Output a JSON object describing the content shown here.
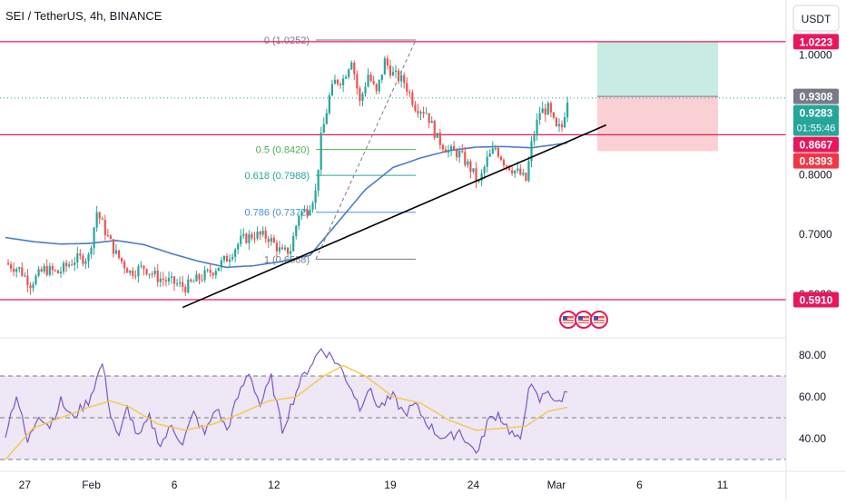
{
  "header": {
    "symbol_title": "SEI / TetherUS, 4h, BINANCE",
    "currency_button": "USDT"
  },
  "colors": {
    "up": "#26a69a",
    "down": "#ef5350",
    "ma": "#4a7cc7",
    "level_line": "#e8175d",
    "rsi_line": "#7e57c2",
    "rsi_ma": "#f5c842",
    "rsi_band": "#ede7f6",
    "trendline": "#000000",
    "target_zone": "#c8ebe3",
    "stop_zone": "#fbd0d5"
  },
  "price_axis": {
    "ticks": [
      {
        "label": "1.0000",
        "value": 1.0
      },
      {
        "label": "0.8000",
        "value": 0.8
      },
      {
        "label": "0.7000",
        "value": 0.7
      },
      {
        "label": "0.6000",
        "value": 0.6
      }
    ],
    "badges": [
      {
        "label": "1.0223",
        "value": 1.0223,
        "color": "#e8175d",
        "text": "#ffffff"
      },
      {
        "label": "0.9308",
        "value": 0.9308,
        "color": "#787b86",
        "text": "#ffffff"
      },
      {
        "label": "0.9283",
        "value": 0.9283,
        "color": "#26a69a",
        "text": "#ffffff",
        "sub": "01:55:46"
      },
      {
        "label": "0.8667",
        "value": 0.8667,
        "color": "#e8175d",
        "text": "#ffffff"
      },
      {
        "label": "0.8393",
        "value": 0.8393,
        "color": "#f23645",
        "text": "#ffffff"
      },
      {
        "label": "0.5910",
        "value": 0.591,
        "color": "#e8175d",
        "text": "#ffffff"
      }
    ]
  },
  "rsi_axis": {
    "ticks": [
      {
        "label": "80.00",
        "value": 80
      },
      {
        "label": "60.00",
        "value": 60
      },
      {
        "label": "40.00",
        "value": 40
      }
    ]
  },
  "time_axis": {
    "ticks": [
      {
        "label": "27",
        "index": 7
      },
      {
        "label": "Feb",
        "index": 31
      },
      {
        "label": "6",
        "index": 61
      },
      {
        "label": "12",
        "index": 97
      },
      {
        "label": "19",
        "index": 139
      },
      {
        "label": "24",
        "index": 169
      },
      {
        "label": "Mar",
        "index": 199
      },
      {
        "label": "6",
        "index": 229
      },
      {
        "label": "11",
        "index": 259
      }
    ]
  },
  "fib_labels": [
    {
      "label": "0 (1.0252)",
      "value": 1.0252
    },
    {
      "label": "0.5 (0.8420)",
      "value": 0.842
    },
    {
      "label": "0.618 (0.7988)",
      "value": 0.7988
    },
    {
      "label": "0.786 (0.7372)",
      "value": 0.7372
    },
    {
      "label": "1 (0.6588)",
      "value": 0.6588
    }
  ],
  "chart_data": {
    "type": "candlestick",
    "title": "SEI / TetherUS, 4h, BINANCE",
    "timeframe": "4h",
    "ylim": [
      0.57,
      1.05
    ],
    "rsi_ylim": [
      28,
      88
    ],
    "rsi_bands": [
      30,
      50,
      70
    ],
    "horizontal_levels": [
      1.0223,
      0.8667,
      0.591
    ],
    "position": {
      "entry": 0.9308,
      "target": 1.0223,
      "stop": 0.8393
    },
    "trendline": {
      "from": {
        "index": 64,
        "value": 0.578
      },
      "to": {
        "index": 217,
        "value": 0.883
      }
    },
    "anchors": [
      {
        "index": 0,
        "value": 0.652
      },
      {
        "index": 5,
        "value": 0.642
      },
      {
        "index": 9,
        "value": 0.618
      },
      {
        "index": 14,
        "value": 0.642
      },
      {
        "index": 19,
        "value": 0.636
      },
      {
        "index": 25,
        "value": 0.658
      },
      {
        "index": 30,
        "value": 0.662
      },
      {
        "index": 33,
        "value": 0.738
      },
      {
        "index": 37,
        "value": 0.695
      },
      {
        "index": 40,
        "value": 0.667
      },
      {
        "index": 45,
        "value": 0.637
      },
      {
        "index": 50,
        "value": 0.645
      },
      {
        "index": 55,
        "value": 0.628
      },
      {
        "index": 60,
        "value": 0.62
      },
      {
        "index": 65,
        "value": 0.612
      },
      {
        "index": 70,
        "value": 0.627
      },
      {
        "index": 75,
        "value": 0.64
      },
      {
        "index": 80,
        "value": 0.66
      },
      {
        "index": 85,
        "value": 0.69
      },
      {
        "index": 90,
        "value": 0.7
      },
      {
        "index": 95,
        "value": 0.695
      },
      {
        "index": 100,
        "value": 0.668
      },
      {
        "index": 103,
        "value": 0.675
      },
      {
        "index": 106,
        "value": 0.735
      },
      {
        "index": 109,
        "value": 0.742
      },
      {
        "index": 112,
        "value": 0.77
      },
      {
        "index": 114,
        "value": 0.86
      },
      {
        "index": 117,
        "value": 0.93
      },
      {
        "index": 119,
        "value": 0.955
      },
      {
        "index": 122,
        "value": 0.96
      },
      {
        "index": 125,
        "value": 0.995
      },
      {
        "index": 128,
        "value": 0.92
      },
      {
        "index": 131,
        "value": 0.968
      },
      {
        "index": 134,
        "value": 0.935
      },
      {
        "index": 137,
        "value": 0.99
      },
      {
        "index": 140,
        "value": 0.968
      },
      {
        "index": 144,
        "value": 0.955
      },
      {
        "index": 148,
        "value": 0.915
      },
      {
        "index": 152,
        "value": 0.905
      },
      {
        "index": 156,
        "value": 0.86
      },
      {
        "index": 160,
        "value": 0.84
      },
      {
        "index": 164,
        "value": 0.835
      },
      {
        "index": 168,
        "value": 0.81
      },
      {
        "index": 171,
        "value": 0.785
      },
      {
        "index": 174,
        "value": 0.825
      },
      {
        "index": 177,
        "value": 0.845
      },
      {
        "index": 180,
        "value": 0.822
      },
      {
        "index": 183,
        "value": 0.81
      },
      {
        "index": 186,
        "value": 0.8
      },
      {
        "index": 188,
        "value": 0.79
      },
      {
        "index": 190,
        "value": 0.85
      },
      {
        "index": 193,
        "value": 0.905
      },
      {
        "index": 196,
        "value": 0.91
      },
      {
        "index": 199,
        "value": 0.875
      },
      {
        "index": 201,
        "value": 0.88
      },
      {
        "index": 203,
        "value": 0.928
      }
    ],
    "ma_anchors": [
      {
        "index": 0,
        "value": 0.695
      },
      {
        "index": 10,
        "value": 0.688
      },
      {
        "index": 20,
        "value": 0.684
      },
      {
        "index": 30,
        "value": 0.685
      },
      {
        "index": 40,
        "value": 0.69
      },
      {
        "index": 50,
        "value": 0.683
      },
      {
        "index": 60,
        "value": 0.668
      },
      {
        "index": 70,
        "value": 0.655
      },
      {
        "index": 80,
        "value": 0.645
      },
      {
        "index": 90,
        "value": 0.648
      },
      {
        "index": 100,
        "value": 0.655
      },
      {
        "index": 110,
        "value": 0.665
      },
      {
        "index": 120,
        "value": 0.72
      },
      {
        "index": 130,
        "value": 0.775
      },
      {
        "index": 140,
        "value": 0.812
      },
      {
        "index": 150,
        "value": 0.828
      },
      {
        "index": 160,
        "value": 0.84
      },
      {
        "index": 170,
        "value": 0.846
      },
      {
        "index": 180,
        "value": 0.847
      },
      {
        "index": 190,
        "value": 0.845
      },
      {
        "index": 203,
        "value": 0.853
      }
    ],
    "rsi_anchors": [
      {
        "index": 0,
        "value": 43
      },
      {
        "index": 4,
        "value": 61
      },
      {
        "index": 8,
        "value": 38
      },
      {
        "index": 12,
        "value": 52
      },
      {
        "index": 16,
        "value": 46
      },
      {
        "index": 20,
        "value": 58
      },
      {
        "index": 24,
        "value": 50
      },
      {
        "index": 30,
        "value": 58
      },
      {
        "index": 35,
        "value": 76
      },
      {
        "index": 38,
        "value": 52
      },
      {
        "index": 41,
        "value": 40
      },
      {
        "index": 44,
        "value": 55
      },
      {
        "index": 48,
        "value": 40
      },
      {
        "index": 52,
        "value": 50
      },
      {
        "index": 56,
        "value": 37
      },
      {
        "index": 60,
        "value": 46
      },
      {
        "index": 64,
        "value": 38
      },
      {
        "index": 68,
        "value": 52
      },
      {
        "index": 72,
        "value": 42
      },
      {
        "index": 76,
        "value": 55
      },
      {
        "index": 80,
        "value": 44
      },
      {
        "index": 84,
        "value": 60
      },
      {
        "index": 88,
        "value": 72
      },
      {
        "index": 92,
        "value": 56
      },
      {
        "index": 96,
        "value": 69
      },
      {
        "index": 100,
        "value": 44
      },
      {
        "index": 103,
        "value": 55
      },
      {
        "index": 106,
        "value": 66
      },
      {
        "index": 110,
        "value": 75
      },
      {
        "index": 114,
        "value": 83
      },
      {
        "index": 118,
        "value": 79
      },
      {
        "index": 121,
        "value": 74
      },
      {
        "index": 125,
        "value": 64
      },
      {
        "index": 128,
        "value": 55
      },
      {
        "index": 131,
        "value": 64
      },
      {
        "index": 135,
        "value": 55
      },
      {
        "index": 140,
        "value": 60
      },
      {
        "index": 144,
        "value": 52
      },
      {
        "index": 148,
        "value": 56
      },
      {
        "index": 152,
        "value": 48
      },
      {
        "index": 156,
        "value": 42
      },
      {
        "index": 160,
        "value": 40
      },
      {
        "index": 164,
        "value": 44
      },
      {
        "index": 168,
        "value": 36
      },
      {
        "index": 171,
        "value": 34
      },
      {
        "index": 174,
        "value": 48
      },
      {
        "index": 178,
        "value": 52
      },
      {
        "index": 182,
        "value": 44
      },
      {
        "index": 186,
        "value": 38
      },
      {
        "index": 189,
        "value": 66
      },
      {
        "index": 193,
        "value": 58
      },
      {
        "index": 196,
        "value": 64
      },
      {
        "index": 199,
        "value": 56
      },
      {
        "index": 203,
        "value": 63
      }
    ],
    "rsi_ma_anchors": [
      {
        "index": 0,
        "value": 30
      },
      {
        "index": 10,
        "value": 45
      },
      {
        "index": 20,
        "value": 50
      },
      {
        "index": 30,
        "value": 55
      },
      {
        "index": 38,
        "value": 58
      },
      {
        "index": 45,
        "value": 55
      },
      {
        "index": 55,
        "value": 47
      },
      {
        "index": 65,
        "value": 44
      },
      {
        "index": 75,
        "value": 47
      },
      {
        "index": 85,
        "value": 52
      },
      {
        "index": 95,
        "value": 58
      },
      {
        "index": 105,
        "value": 60
      },
      {
        "index": 115,
        "value": 70
      },
      {
        "index": 122,
        "value": 75
      },
      {
        "index": 130,
        "value": 70
      },
      {
        "index": 140,
        "value": 60
      },
      {
        "index": 150,
        "value": 57
      },
      {
        "index": 160,
        "value": 49
      },
      {
        "index": 170,
        "value": 44
      },
      {
        "index": 180,
        "value": 45
      },
      {
        "index": 188,
        "value": 46
      },
      {
        "index": 196,
        "value": 53
      },
      {
        "index": 203,
        "value": 55
      }
    ]
  }
}
